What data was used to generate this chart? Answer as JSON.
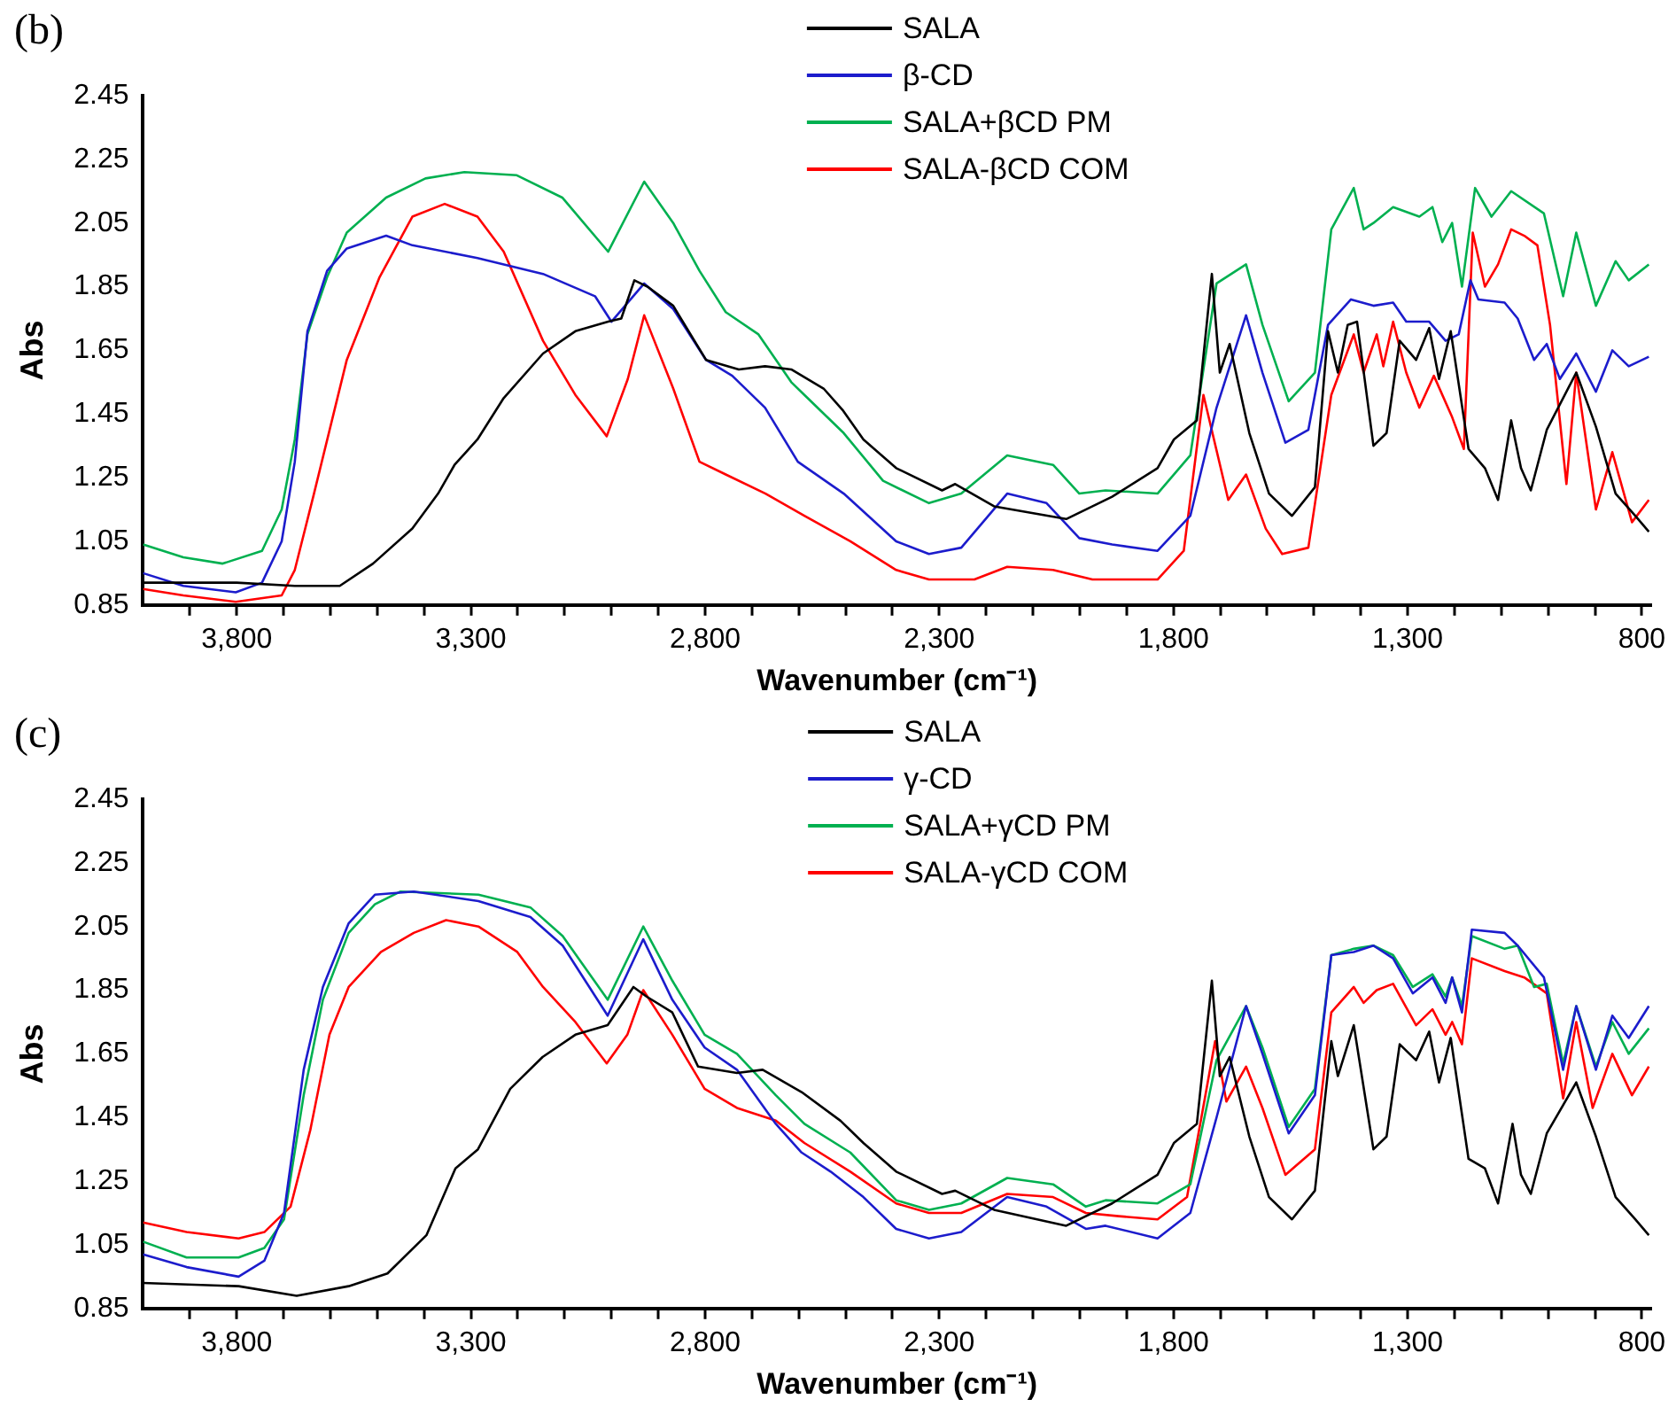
{
  "chart_data": [
    {
      "type": "line",
      "title": "(b)",
      "xlabel": "Wavenumber (cm⁻¹)",
      "ylabel": "Abs",
      "legend": "top",
      "marker": "none",
      "grid": false,
      "xlim": [
        4000,
        780
      ],
      "ylim": [
        0.85,
        2.45
      ],
      "xticks": [
        {
          "value": 3900,
          "label": null
        },
        {
          "value": 3800,
          "label": "3,800"
        },
        {
          "value": 3700,
          "label": null
        },
        {
          "value": 3600,
          "label": null
        },
        {
          "value": 3500,
          "label": null
        },
        {
          "value": 3400,
          "label": null
        },
        {
          "value": 3300,
          "label": "3,300"
        },
        {
          "value": 3200,
          "label": null
        },
        {
          "value": 3100,
          "label": null
        },
        {
          "value": 3000,
          "label": null
        },
        {
          "value": 2900,
          "label": null
        },
        {
          "value": 2800,
          "label": "2,800"
        },
        {
          "value": 2700,
          "label": null
        },
        {
          "value": 2600,
          "label": null
        },
        {
          "value": 2500,
          "label": null
        },
        {
          "value": 2400,
          "label": null
        },
        {
          "value": 2300,
          "label": "2,300"
        },
        {
          "value": 2200,
          "label": null
        },
        {
          "value": 2100,
          "label": null
        },
        {
          "value": 2000,
          "label": null
        },
        {
          "value": 1900,
          "label": null
        },
        {
          "value": 1800,
          "label": "1,800"
        },
        {
          "value": 1700,
          "label": null
        },
        {
          "value": 1600,
          "label": null
        },
        {
          "value": 1500,
          "label": null
        },
        {
          "value": 1400,
          "label": null
        },
        {
          "value": 1300,
          "label": "1,300"
        },
        {
          "value": 1200,
          "label": null
        },
        {
          "value": 1100,
          "label": null
        },
        {
          "value": 1000,
          "label": null
        },
        {
          "value": 900,
          "label": null
        },
        {
          "value": 800,
          "label": "800"
        }
      ],
      "yticks": [
        0.85,
        1.05,
        1.25,
        1.45,
        1.65,
        1.85,
        2.05,
        2.25,
        2.45
      ],
      "series": [
        {
          "name": "SALA",
          "color": "#000000",
          "x": [
            4000,
            3800,
            3676,
            3580,
            3509,
            3425,
            3370,
            3335,
            3286,
            3230,
            3146,
            3077,
            3007,
            2979,
            2951,
            2923,
            2868,
            2798,
            2728,
            2672,
            2616,
            2547,
            2505,
            2462,
            2392,
            2294,
            2266,
            2183,
            2029,
            1931,
            1834,
            1799,
            1750,
            1718,
            1701,
            1680,
            1638,
            1596,
            1547,
            1498,
            1470,
            1449,
            1428,
            1408,
            1373,
            1345,
            1317,
            1282,
            1254,
            1233,
            1208,
            1170,
            1135,
            1107,
            1079,
            1058,
            1037,
            1003,
            940,
            898,
            856,
            814,
            785
          ],
          "values": [
            0.92,
            0.92,
            0.91,
            0.91,
            0.98,
            1.09,
            1.2,
            1.29,
            1.37,
            1.5,
            1.64,
            1.71,
            1.74,
            1.75,
            1.87,
            1.85,
            1.79,
            1.62,
            1.59,
            1.6,
            1.59,
            1.53,
            1.46,
            1.37,
            1.28,
            1.21,
            1.23,
            1.16,
            1.12,
            1.19,
            1.28,
            1.37,
            1.43,
            1.89,
            1.58,
            1.67,
            1.39,
            1.2,
            1.13,
            1.22,
            1.71,
            1.58,
            1.73,
            1.74,
            1.35,
            1.39,
            1.68,
            1.62,
            1.72,
            1.56,
            1.71,
            1.34,
            1.28,
            1.18,
            1.43,
            1.28,
            1.21,
            1.4,
            1.58,
            1.41,
            1.2,
            1.13,
            1.08
          ]
        },
        {
          "name": "β-CD",
          "color": "#1c1ccc",
          "x": [
            4000,
            3914,
            3802,
            3746,
            3704,
            3676,
            3649,
            3607,
            3565,
            3481,
            3425,
            3286,
            3146,
            3035,
            3000,
            2930,
            2868,
            2798,
            2742,
            2672,
            2602,
            2504,
            2392,
            2322,
            2253,
            2155,
            2071,
            2001,
            1931,
            1834,
            1764,
            1708,
            1645,
            1610,
            1561,
            1512,
            1470,
            1421,
            1373,
            1331,
            1303,
            1254,
            1219,
            1191,
            1166,
            1149,
            1093,
            1065,
            1030,
            1003,
            975,
            940,
            898,
            863,
            828,
            785
          ],
          "values": [
            0.95,
            0.91,
            0.89,
            0.92,
            1.05,
            1.3,
            1.71,
            1.9,
            1.97,
            2.01,
            1.98,
            1.94,
            1.89,
            1.82,
            1.74,
            1.86,
            1.78,
            1.62,
            1.57,
            1.47,
            1.3,
            1.2,
            1.05,
            1.01,
            1.03,
            1.2,
            1.17,
            1.06,
            1.04,
            1.02,
            1.13,
            1.47,
            1.76,
            1.58,
            1.36,
            1.4,
            1.73,
            1.81,
            1.79,
            1.8,
            1.74,
            1.74,
            1.68,
            1.7,
            1.87,
            1.81,
            1.8,
            1.75,
            1.62,
            1.67,
            1.56,
            1.64,
            1.52,
            1.65,
            1.6,
            1.63
          ]
        },
        {
          "name": "SALA+βCD PM",
          "color": "#00b050",
          "x": [
            4000,
            3914,
            3830,
            3746,
            3704,
            3676,
            3649,
            3607,
            3565,
            3481,
            3397,
            3314,
            3202,
            3105,
            3007,
            2930,
            2868,
            2812,
            2756,
            2686,
            2616,
            2588,
            2504,
            2420,
            2322,
            2253,
            2155,
            2057,
            2001,
            1945,
            1834,
            1764,
            1708,
            1645,
            1610,
            1554,
            1498,
            1463,
            1415,
            1394,
            1373,
            1331,
            1275,
            1247,
            1226,
            1205,
            1184,
            1156,
            1121,
            1079,
            1009,
            968,
            940,
            898,
            856,
            828,
            785
          ],
          "values": [
            1.04,
            1.0,
            0.98,
            1.02,
            1.15,
            1.37,
            1.7,
            1.88,
            2.02,
            2.13,
            2.19,
            2.21,
            2.2,
            2.13,
            1.96,
            2.18,
            2.05,
            1.9,
            1.77,
            1.7,
            1.55,
            1.51,
            1.39,
            1.24,
            1.17,
            1.2,
            1.32,
            1.29,
            1.2,
            1.21,
            1.2,
            1.32,
            1.86,
            1.92,
            1.73,
            1.49,
            1.58,
            2.03,
            2.16,
            2.03,
            2.05,
            2.1,
            2.07,
            2.1,
            1.99,
            2.05,
            1.85,
            2.16,
            2.07,
            2.15,
            2.08,
            1.82,
            2.02,
            1.79,
            1.93,
            1.87,
            1.92
          ]
        },
        {
          "name": "SALA-βCD COM",
          "color": "#ff0000",
          "x": [
            4000,
            3914,
            3802,
            3704,
            3676,
            3635,
            3565,
            3495,
            3425,
            3356,
            3286,
            3230,
            3146,
            3077,
            3010,
            2965,
            2930,
            2868,
            2812,
            2756,
            2671,
            2588,
            2490,
            2392,
            2322,
            2225,
            2155,
            2057,
            1973,
            1834,
            1778,
            1736,
            1683,
            1645,
            1603,
            1568,
            1512,
            1463,
            1415,
            1394,
            1366,
            1352,
            1331,
            1303,
            1275,
            1244,
            1205,
            1180,
            1161,
            1135,
            1107,
            1079,
            1051,
            1023,
            996,
            961,
            940,
            898,
            863,
            821,
            785
          ],
          "values": [
            0.9,
            0.88,
            0.86,
            0.88,
            0.96,
            1.2,
            1.62,
            1.88,
            2.07,
            2.11,
            2.07,
            1.96,
            1.68,
            1.51,
            1.38,
            1.56,
            1.76,
            1.53,
            1.3,
            1.26,
            1.2,
            1.13,
            1.05,
            0.96,
            0.93,
            0.93,
            0.97,
            0.96,
            0.93,
            0.93,
            1.02,
            1.51,
            1.18,
            1.26,
            1.09,
            1.01,
            1.03,
            1.51,
            1.7,
            1.58,
            1.7,
            1.6,
            1.74,
            1.58,
            1.47,
            1.57,
            1.44,
            1.34,
            2.02,
            1.85,
            1.92,
            2.03,
            2.01,
            1.98,
            1.73,
            1.23,
            1.58,
            1.15,
            1.33,
            1.11,
            1.18
          ]
        }
      ]
    },
    {
      "type": "line",
      "title": "(c)",
      "xlabel": "Wavenumber (cm⁻¹)",
      "ylabel": "Abs",
      "legend": "top",
      "marker": "none",
      "grid": false,
      "xlim": [
        4000,
        780
      ],
      "ylim": [
        0.85,
        2.45
      ],
      "xticks": [
        {
          "value": 3900,
          "label": null
        },
        {
          "value": 3800,
          "label": "3,800"
        },
        {
          "value": 3700,
          "label": null
        },
        {
          "value": 3600,
          "label": null
        },
        {
          "value": 3500,
          "label": null
        },
        {
          "value": 3400,
          "label": null
        },
        {
          "value": 3300,
          "label": "3,300"
        },
        {
          "value": 3200,
          "label": null
        },
        {
          "value": 3100,
          "label": null
        },
        {
          "value": 3000,
          "label": null
        },
        {
          "value": 2900,
          "label": null
        },
        {
          "value": 2800,
          "label": "2,800"
        },
        {
          "value": 2700,
          "label": null
        },
        {
          "value": 2600,
          "label": null
        },
        {
          "value": 2500,
          "label": null
        },
        {
          "value": 2400,
          "label": null
        },
        {
          "value": 2300,
          "label": "2,300"
        },
        {
          "value": 2200,
          "label": null
        },
        {
          "value": 2100,
          "label": null
        },
        {
          "value": 2000,
          "label": null
        },
        {
          "value": 1900,
          "label": null
        },
        {
          "value": 1800,
          "label": "1,800"
        },
        {
          "value": 1700,
          "label": null
        },
        {
          "value": 1600,
          "label": null
        },
        {
          "value": 1500,
          "label": null
        },
        {
          "value": 1400,
          "label": null
        },
        {
          "value": 1300,
          "label": "1,300"
        },
        {
          "value": 1200,
          "label": null
        },
        {
          "value": 1100,
          "label": null
        },
        {
          "value": 1000,
          "label": null
        },
        {
          "value": 900,
          "label": null
        },
        {
          "value": 800,
          "label": "800"
        }
      ],
      "yticks": [
        0.85,
        1.05,
        1.25,
        1.45,
        1.65,
        1.85,
        2.05,
        2.25,
        2.45
      ],
      "series": [
        {
          "name": "SALA",
          "color": "#000000",
          "x": [
            4000,
            3796,
            3672,
            3561,
            3478,
            3395,
            3333,
            3285,
            3216,
            3147,
            3077,
            3008,
            2953,
            2925,
            2870,
            2815,
            2732,
            2677,
            2594,
            2511,
            2462,
            2392,
            2294,
            2266,
            2183,
            2029,
            1931,
            1834,
            1799,
            1750,
            1718,
            1701,
            1680,
            1638,
            1596,
            1547,
            1498,
            1463,
            1449,
            1415,
            1373,
            1345,
            1317,
            1282,
            1254,
            1233,
            1208,
            1170,
            1135,
            1107,
            1076,
            1058,
            1037,
            1003,
            940,
            898,
            856,
            814,
            785
          ],
          "values": [
            0.93,
            0.92,
            0.89,
            0.92,
            0.96,
            1.08,
            1.29,
            1.35,
            1.54,
            1.64,
            1.71,
            1.74,
            1.86,
            1.83,
            1.78,
            1.61,
            1.59,
            1.6,
            1.53,
            1.44,
            1.37,
            1.28,
            1.21,
            1.22,
            1.16,
            1.11,
            1.18,
            1.27,
            1.37,
            1.43,
            1.88,
            1.58,
            1.64,
            1.39,
            1.2,
            1.13,
            1.22,
            1.69,
            1.58,
            1.74,
            1.35,
            1.39,
            1.68,
            1.63,
            1.72,
            1.56,
            1.7,
            1.32,
            1.29,
            1.18,
            1.43,
            1.27,
            1.21,
            1.4,
            1.56,
            1.39,
            1.2,
            1.13,
            1.08
          ]
        },
        {
          "name": "γ-CD",
          "color": "#1c1ccc",
          "x": [
            4000,
            3907,
            3796,
            3741,
            3699,
            3657,
            3616,
            3561,
            3505,
            3422,
            3284,
            3173,
            3104,
            3008,
            2932,
            2870,
            2801,
            2732,
            2649,
            2594,
            2532,
            2462,
            2392,
            2322,
            2253,
            2155,
            2071,
            1987,
            1945,
            1834,
            1764,
            1708,
            1645,
            1610,
            1554,
            1498,
            1463,
            1415,
            1373,
            1331,
            1289,
            1247,
            1219,
            1205,
            1184,
            1163,
            1093,
            1065,
            1009,
            968,
            940,
            898,
            863,
            828,
            785
          ],
          "values": [
            1.02,
            0.98,
            0.95,
            1.0,
            1.15,
            1.6,
            1.86,
            2.06,
            2.15,
            2.16,
            2.13,
            2.08,
            1.99,
            1.77,
            2.01,
            1.82,
            1.67,
            1.6,
            1.43,
            1.34,
            1.28,
            1.2,
            1.1,
            1.07,
            1.09,
            1.2,
            1.17,
            1.1,
            1.11,
            1.07,
            1.15,
            1.45,
            1.8,
            1.65,
            1.4,
            1.52,
            1.96,
            1.97,
            1.99,
            1.95,
            1.84,
            1.89,
            1.81,
            1.89,
            1.78,
            2.04,
            2.03,
            1.99,
            1.89,
            1.6,
            1.8,
            1.6,
            1.77,
            1.7,
            1.8
          ]
        },
        {
          "name": "SALA+γCD PM",
          "color": "#00b050",
          "x": [
            4000,
            3907,
            3796,
            3741,
            3699,
            3657,
            3616,
            3561,
            3505,
            3450,
            3284,
            3173,
            3104,
            3008,
            2932,
            2870,
            2801,
            2732,
            2649,
            2588,
            2490,
            2392,
            2322,
            2253,
            2155,
            2057,
            1987,
            1945,
            1834,
            1764,
            1708,
            1645,
            1610,
            1554,
            1498,
            1463,
            1415,
            1373,
            1331,
            1289,
            1247,
            1219,
            1205,
            1184,
            1163,
            1093,
            1065,
            1030,
            1003,
            968,
            940,
            898,
            863,
            828,
            785
          ],
          "values": [
            1.06,
            1.01,
            1.01,
            1.04,
            1.13,
            1.52,
            1.82,
            2.03,
            2.12,
            2.16,
            2.15,
            2.11,
            2.02,
            1.82,
            2.05,
            1.88,
            1.71,
            1.65,
            1.52,
            1.43,
            1.34,
            1.19,
            1.16,
            1.18,
            1.26,
            1.24,
            1.17,
            1.19,
            1.18,
            1.24,
            1.63,
            1.8,
            1.67,
            1.42,
            1.54,
            1.96,
            1.98,
            1.99,
            1.96,
            1.86,
            1.9,
            1.83,
            1.89,
            1.8,
            2.02,
            1.98,
            1.99,
            1.86,
            1.87,
            1.62,
            1.8,
            1.61,
            1.75,
            1.65,
            1.73
          ]
        },
        {
          "name": "SALA-γCD COM",
          "color": "#ff0000",
          "x": [
            4000,
            3907,
            3796,
            3741,
            3685,
            3643,
            3602,
            3561,
            3492,
            3422,
            3353,
            3284,
            3201,
            3146,
            3077,
            3010,
            2966,
            2932,
            2870,
            2801,
            2732,
            2649,
            2588,
            2490,
            2392,
            2322,
            2253,
            2155,
            2057,
            1987,
            1917,
            1834,
            1771,
            1711,
            1687,
            1645,
            1610,
            1561,
            1498,
            1463,
            1415,
            1394,
            1366,
            1331,
            1282,
            1247,
            1219,
            1205,
            1184,
            1163,
            1093,
            1051,
            1003,
            968,
            940,
            905,
            863,
            821,
            785
          ],
          "values": [
            1.12,
            1.09,
            1.07,
            1.09,
            1.17,
            1.41,
            1.71,
            1.86,
            1.97,
            2.03,
            2.07,
            2.05,
            1.97,
            1.86,
            1.75,
            1.62,
            1.71,
            1.85,
            1.71,
            1.54,
            1.48,
            1.44,
            1.37,
            1.28,
            1.18,
            1.15,
            1.15,
            1.21,
            1.2,
            1.15,
            1.14,
            1.13,
            1.2,
            1.69,
            1.5,
            1.61,
            1.48,
            1.27,
            1.35,
            1.78,
            1.86,
            1.81,
            1.85,
            1.87,
            1.74,
            1.79,
            1.71,
            1.75,
            1.68,
            1.95,
            1.91,
            1.89,
            1.84,
            1.51,
            1.75,
            1.48,
            1.65,
            1.52,
            1.61
          ]
        }
      ]
    }
  ]
}
